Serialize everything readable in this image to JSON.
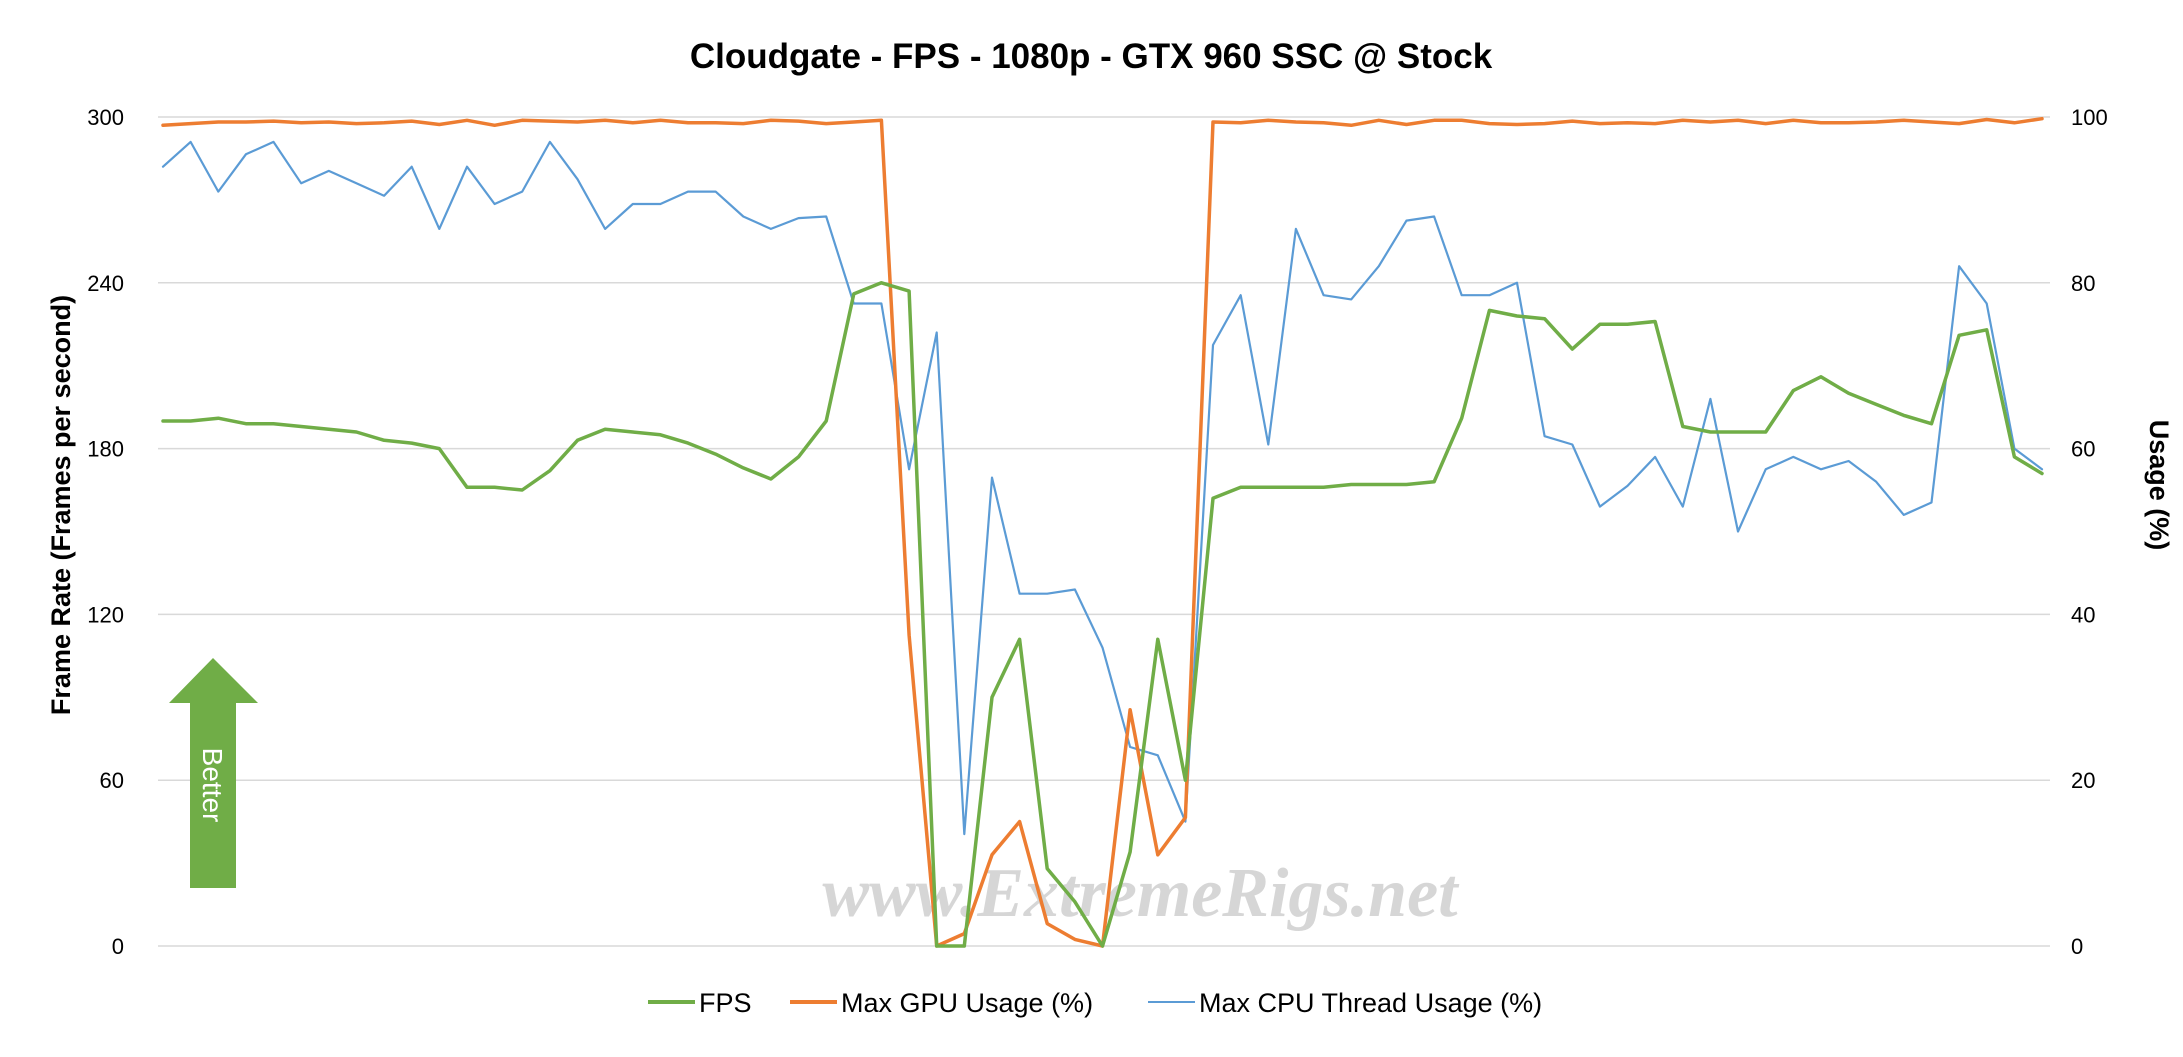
{
  "chart_data": {
    "type": "line",
    "title": "Cloudgate - FPS - 1080p - GTX 960 SSC @ Stock",
    "ylabel": "Frame Rate (Frames per second)",
    "y2label": "Usage (%)",
    "ylim": [
      0,
      300
    ],
    "y2lim": [
      0,
      100
    ],
    "yticks": [
      "0",
      "60",
      "120",
      "180",
      "240",
      "300"
    ],
    "y2ticks": [
      "0",
      "20",
      "40",
      "60",
      "80",
      "100"
    ],
    "grid": true,
    "legend_position": "bottom",
    "annotation": "Better",
    "watermark": "www.ExtremeRigs.net",
    "colors": {
      "fps": "#70ad47",
      "gpu": "#ed7d31",
      "cpu": "#5b9bd5",
      "grid": "#d9d9d9",
      "arrow": "#70ad47"
    },
    "series": [
      {
        "name": "FPS",
        "axis": "left",
        "values": [
          190,
          190,
          191,
          189,
          189,
          188,
          187,
          186,
          183,
          182,
          180,
          166,
          166,
          165,
          172,
          183,
          187,
          186,
          185,
          182,
          178,
          173,
          169,
          177,
          190,
          236,
          240,
          237,
          0,
          0,
          90,
          111,
          28,
          16,
          0,
          34,
          111,
          60,
          162,
          166,
          166,
          166,
          166,
          167,
          167,
          167,
          168,
          191,
          230,
          228,
          227,
          216,
          225,
          225,
          226,
          188,
          186,
          186,
          186,
          201,
          206,
          200,
          196,
          192,
          189,
          221,
          223,
          177,
          171
        ]
      },
      {
        "name": "Max GPU Usage (%)",
        "axis": "right",
        "values": [
          99,
          99.2,
          99.4,
          99.4,
          99.5,
          99.3,
          99.4,
          99.2,
          99.3,
          99.5,
          99.1,
          99.6,
          99,
          99.6,
          99.5,
          99.4,
          99.6,
          99.3,
          99.6,
          99.3,
          99.3,
          99.2,
          99.6,
          99.5,
          99.2,
          99.4,
          99.6,
          37.5,
          0,
          1.5,
          11,
          15,
          2.7,
          0.8,
          0,
          28.5,
          11,
          15.5,
          99.4,
          99.3,
          99.6,
          99.4,
          99.3,
          99.0,
          99.6,
          99.1,
          99.6,
          99.6,
          99.2,
          99.1,
          99.2,
          99.5,
          99.2,
          99.3,
          99.2,
          99.6,
          99.4,
          99.6,
          99.2,
          99.6,
          99.3,
          99.3,
          99.4,
          99.6,
          99.4,
          99.2,
          99.7,
          99.3,
          99.8
        ]
      },
      {
        "name": "Max CPU Thread Usage (%)",
        "axis": "right",
        "values": [
          94,
          97,
          91,
          95.5,
          97,
          92,
          93.5,
          92,
          90.5,
          94,
          86.5,
          94,
          89.5,
          91,
          97,
          92.5,
          86.5,
          89.5,
          89.5,
          91,
          91,
          88,
          86.5,
          87.8,
          88,
          77.5,
          77.5,
          57.5,
          74,
          13.5,
          56.5,
          42.5,
          42.5,
          43,
          36,
          24,
          23,
          15,
          72.5,
          78.5,
          60.5,
          86.5,
          78.5,
          78,
          82,
          87.5,
          88,
          78.5,
          78.5,
          80,
          61.5,
          60.5,
          53,
          55.5,
          59,
          53,
          66,
          50,
          57.5,
          59,
          57.5,
          58.5,
          56,
          52,
          53.5,
          82,
          77.5,
          60,
          57.5
        ]
      }
    ]
  }
}
